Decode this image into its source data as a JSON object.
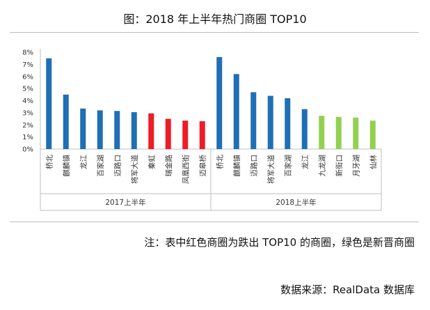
{
  "page": {
    "title": "图：2018 年上半年热门商圈 TOP10",
    "note": "注：表中红色商圈为跌出 TOP10 的商圈，绿色是新晋商圈",
    "source": "数据来源：RealData 数据库"
  },
  "colors": {
    "blue": "#1f6fb5",
    "red": "#ee1c25",
    "green": "#92d050",
    "axis": "#bfbfbf",
    "text": "#333333"
  },
  "chart_data": {
    "type": "bar",
    "title": "图：2018 年上半年热门商圈 TOP10",
    "ylim": [
      0,
      8
    ],
    "ytick_labels": [
      "0%",
      "1%",
      "2%",
      "3%",
      "4%",
      "5%",
      "6%",
      "7%",
      "8%"
    ],
    "groups": [
      {
        "name": "2017上半年",
        "categories": [
          "桥北",
          "麒麟镇",
          "龙江",
          "百家湖",
          "迈路口",
          "将军大道",
          "秦虹",
          "瑞金路",
          "凤凰西街",
          "迈皋桥"
        ],
        "values": [
          7.5,
          4.5,
          3.35,
          3.2,
          3.15,
          3.05,
          2.95,
          2.5,
          2.35,
          2.3
        ],
        "colors": [
          "blue",
          "blue",
          "blue",
          "blue",
          "blue",
          "blue",
          "red",
          "red",
          "red",
          "red"
        ]
      },
      {
        "name": "2018上半年",
        "categories": [
          "桥北",
          "麒麟镇",
          "迈路口",
          "将军大道",
          "百家湖",
          "龙江",
          "九龙湖",
          "新街口",
          "月牙湖",
          "仙林"
        ],
        "values": [
          7.6,
          6.2,
          4.7,
          4.4,
          4.2,
          3.3,
          2.75,
          2.65,
          2.6,
          2.35
        ],
        "colors": [
          "blue",
          "blue",
          "blue",
          "blue",
          "blue",
          "blue",
          "green",
          "green",
          "green",
          "green"
        ]
      }
    ]
  }
}
